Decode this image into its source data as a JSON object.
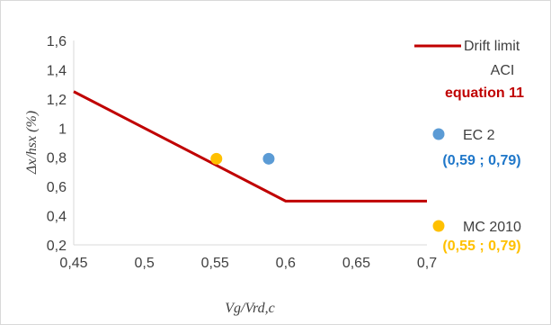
{
  "chart_data": {
    "type": "line",
    "xlabel": "Vg/Vrd,c",
    "ylabel": "Δx/hsx (%)",
    "xlim": [
      0.45,
      0.7
    ],
    "ylim": [
      0.2,
      1.6
    ],
    "x_ticks": [
      "0,45",
      "0,5",
      "0,55",
      "0,6",
      "0,65",
      "0,7"
    ],
    "y_ticks": [
      "0,2",
      "0,4",
      "0,6",
      "0,8",
      "1",
      "1,2",
      "1,4",
      "1,6"
    ],
    "grid": false,
    "legend_position": "right",
    "series": [
      {
        "name": "Drift limit ACI",
        "label": "equation 11",
        "type": "line",
        "color": "#c00000",
        "points": [
          [
            0.45,
            1.25
          ],
          [
            0.6,
            0.5
          ],
          [
            0.7,
            0.5
          ]
        ]
      },
      {
        "name": "EC 2",
        "label": "(0,59 ; 0,79)",
        "type": "scatter",
        "color": "#5b9bd5",
        "label_color": "#1f77c9",
        "points": [
          [
            0.588,
            0.79
          ]
        ]
      },
      {
        "name": "MC 2010",
        "label": "(0,55 ; 0,79)",
        "type": "scatter",
        "color": "#ffc000",
        "label_color": "#ffc000",
        "points": [
          [
            0.551,
            0.79
          ]
        ]
      }
    ]
  }
}
